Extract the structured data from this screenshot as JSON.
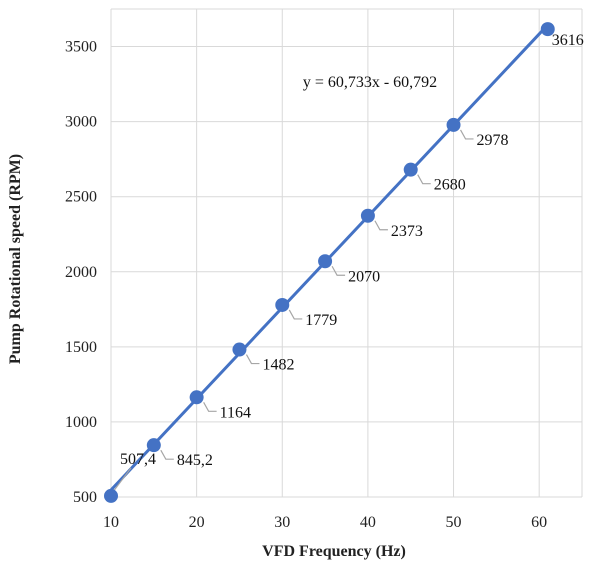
{
  "chart_data": {
    "type": "scatter",
    "title": "",
    "xlabel": "VFD Frequency (Hz)",
    "ylabel": "Pump Rotational speed (RPM)",
    "xlim": [
      10,
      65
    ],
    "ylim": [
      500,
      3750
    ],
    "x_ticks": [
      "10",
      "20",
      "30",
      "40",
      "50",
      "60"
    ],
    "y_ticks": [
      "500",
      "1000",
      "1500",
      "2000",
      "2500",
      "3000",
      "3500"
    ],
    "grid": true,
    "legend": "none",
    "series": [
      {
        "x": [
          10,
          15,
          20,
          25,
          30,
          35,
          40,
          45,
          50,
          61
        ],
        "y": [
          507.4,
          845.2,
          1164,
          1482,
          1779,
          2070,
          2373,
          2680,
          2978,
          3616
        ],
        "labels": [
          "507,4",
          "845,2",
          "1164",
          "1482",
          "1779",
          "2070",
          "2373",
          "2680",
          "2978",
          "3616"
        ],
        "color": "#4472c4"
      }
    ],
    "trendline": {
      "type": "linear",
      "equation": "y = 60,733x - 60,792",
      "slope": 60.733,
      "intercept": -60.792,
      "color": "#4472c4"
    },
    "colors": {
      "grid": "#d9d9d9",
      "marker": "#4472c4",
      "leader": "#a6a6a6"
    }
  }
}
